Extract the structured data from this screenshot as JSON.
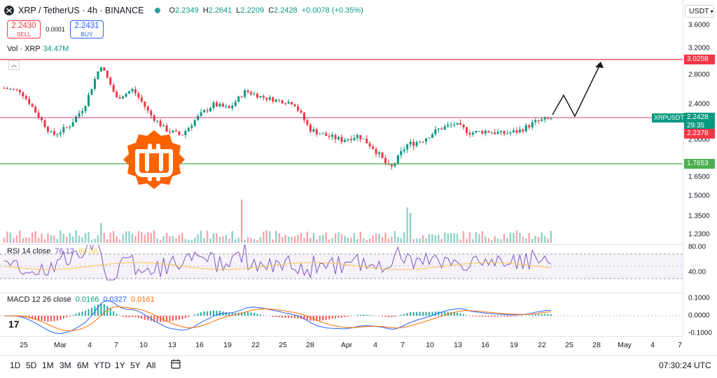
{
  "header": {
    "symbol": "XRP / TetherUS · 4h · BINANCE",
    "open_label": "O",
    "open": "2.2349",
    "high_label": "H",
    "high": "2.2641",
    "low_label": "L",
    "low": "2.2209",
    "close_label": "C",
    "close": "2.2428",
    "change": "+0.0078 (+0.35%)"
  },
  "trade": {
    "sell_price": "2.2430",
    "sell_label": "SELL",
    "spread": "0.0001",
    "buy_price": "2.2431",
    "buy_label": "BUY"
  },
  "volume": {
    "label": "Vol · XRP",
    "value": "34.47M"
  },
  "price_scale": {
    "currency": "USDT",
    "ticks": [
      "3.6000",
      "3.2000",
      "2.8000",
      "2.4000",
      "2.0000",
      "1.6500",
      "1.5000",
      "1.3500",
      "1.2300"
    ],
    "resistance_label": "3.0258",
    "support_label": "1.7653",
    "symbol_tag": "XRPUSDT",
    "current_price": "2.2428",
    "countdown": "29:35",
    "prev_close_label": "2.2378"
  },
  "rsi": {
    "title": "RSI 14 close",
    "value1": "76.12",
    "value2": "60.06",
    "ticks": [
      "80.00",
      "40.00"
    ]
  },
  "macd": {
    "title": "MACD 12 26 close",
    "hist": "0.0166",
    "macd": "0.0327",
    "signal": "0.0161",
    "ticks": [
      "0.1000",
      "0.0000",
      "-0.1000"
    ]
  },
  "time_axis": [
    "25",
    "Mar",
    "4",
    "7",
    "10",
    "13",
    "16",
    "19",
    "22",
    "25",
    "28",
    "Apr",
    "4",
    "7",
    "10",
    "13",
    "16",
    "19",
    "22",
    "25",
    "28",
    "May",
    "4",
    "7"
  ],
  "ranges": [
    "1D",
    "5D",
    "1M",
    "3M",
    "6M",
    "YTD",
    "1Y",
    "5Y",
    "All"
  ],
  "clock": "07:30:24 UTC",
  "colors": {
    "up": "#089981",
    "down": "#f23645",
    "resistance": "#f23645",
    "support": "#4caf50",
    "rsi": "#7e57c2",
    "macd": "#2962ff",
    "signal": "#ff6d00",
    "logo": "#f7931a"
  },
  "chart_data": {
    "type": "candlestick",
    "timeframe": "4h",
    "horizontal_levels": [
      3.0258,
      2.2378,
      1.7653
    ],
    "close_path": [
      2.62,
      2.58,
      2.3,
      2.05,
      2.15,
      2.38,
      2.95,
      2.48,
      2.6,
      2.3,
      2.12,
      2.05,
      2.25,
      2.4,
      2.35,
      2.58,
      2.5,
      2.45,
      2.42,
      2.12,
      2.05,
      2.0,
      2.05,
      1.92,
      1.72,
      1.95,
      2.0,
      2.12,
      2.18,
      2.08,
      2.1,
      2.07,
      2.1,
      2.2,
      2.2428
    ]
  }
}
